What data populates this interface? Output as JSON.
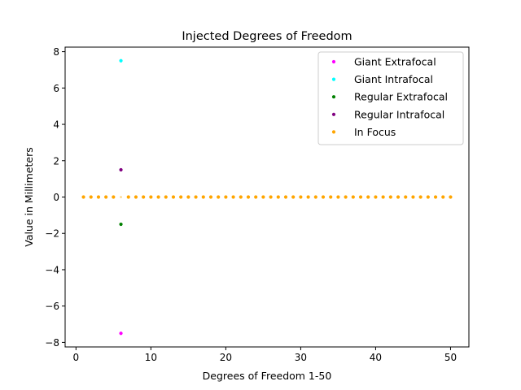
{
  "chart_data": {
    "type": "scatter",
    "title": "Injected Degrees of Freedom",
    "xlabel": "Degrees of Freedom 1-50",
    "ylabel": "Value in Millimeters",
    "xlim": [
      -1.45,
      52.45
    ],
    "ylim": [
      -8.25,
      8.25
    ],
    "xticks": [
      0,
      10,
      20,
      30,
      40,
      50
    ],
    "yticks": [
      -8,
      -6,
      -4,
      -2,
      0,
      2,
      4,
      6,
      8
    ],
    "grid": false,
    "legend_position": "top-right",
    "series": [
      {
        "name": "Giant Extrafocal",
        "color": "#ff00ff",
        "points": [
          [
            6,
            -7.5
          ]
        ]
      },
      {
        "name": "Giant Intrafocal",
        "color": "#00ffff",
        "points": [
          [
            6,
            7.5
          ]
        ]
      },
      {
        "name": "Regular Extrafocal",
        "color": "#008000",
        "points": [
          [
            6,
            -1.5
          ]
        ]
      },
      {
        "name": "Regular Intrafocal",
        "color": "#800080",
        "points": [
          [
            6,
            1.5
          ]
        ]
      },
      {
        "name": "In Focus",
        "color": "#ffa500",
        "x_from": 1,
        "x_to": 50,
        "y": 0,
        "skip_x": [
          6
        ],
        "skip_color": "#ffd27a"
      }
    ]
  }
}
